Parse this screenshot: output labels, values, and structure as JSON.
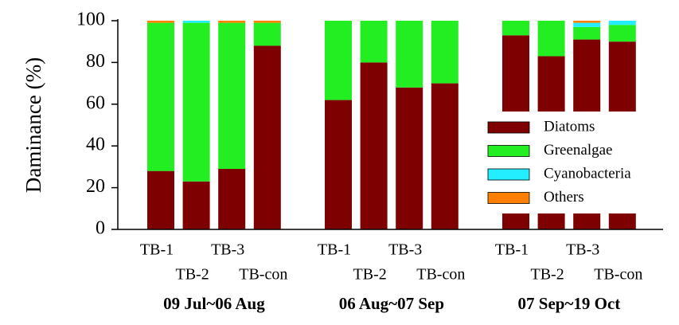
{
  "chart_data": {
    "type": "stacked-bar",
    "y_label": "Daminance (%)",
    "categories": [
      "TB-1",
      "TB-2",
      "TB-3",
      "TB-con",
      null,
      "TB-1",
      "TB-2",
      "TB-3",
      "TB-con",
      null,
      "TB-1",
      "TB-2",
      "TB-3",
      "TB-con"
    ],
    "group_labels": [
      "09 Jul~06 Aug",
      "06 Aug~07 Sep",
      "07 Sep~19 Oct"
    ],
    "series": [
      {
        "name": "Diatoms",
        "color": "#7f0000",
        "values": [
          28,
          23,
          29,
          88,
          null,
          62,
          80,
          68,
          70,
          null,
          93,
          83,
          91,
          90
        ]
      },
      {
        "name": "Greenalgae",
        "color": "#22ee22",
        "values": [
          71,
          76,
          70,
          11,
          null,
          38,
          20,
          32,
          30,
          null,
          7,
          17,
          6,
          8
        ]
      },
      {
        "name": "Cyanobacteria",
        "color": "#22eeff",
        "values": [
          0,
          1,
          0,
          0,
          null,
          0,
          0,
          0,
          0,
          null,
          0,
          0,
          2,
          2
        ]
      },
      {
        "name": "Others",
        "color": "#ff7f00",
        "values": [
          1,
          0,
          1,
          1,
          null,
          0,
          0,
          0,
          0,
          null,
          0,
          0,
          1,
          0
        ]
      }
    ],
    "ylim": [
      0,
      100
    ],
    "yticks": [
      0,
      20,
      40,
      60,
      80,
      100
    ],
    "legend": "lower right"
  }
}
